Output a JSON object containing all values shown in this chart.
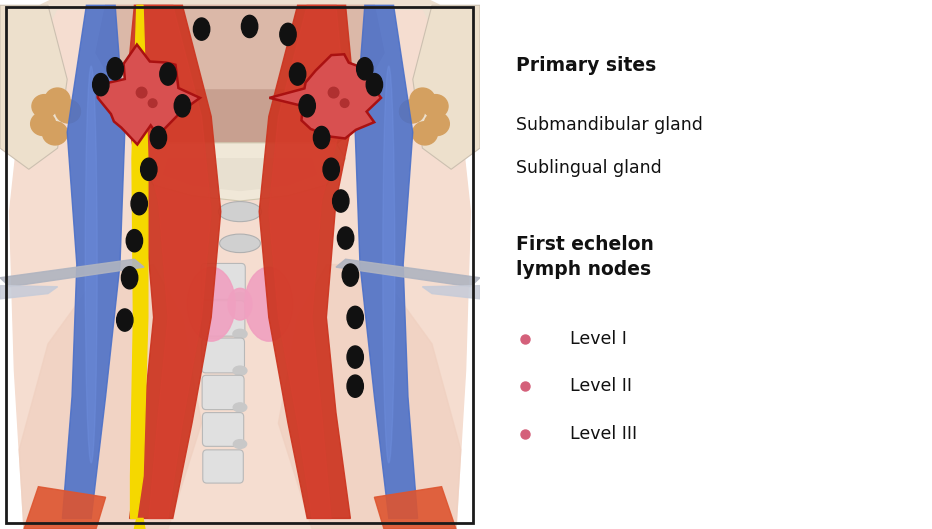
{
  "bg_color": "#ffffff",
  "border_color": "#1a1a1a",
  "primary_sites_title": "Primary sites",
  "primary_sites_items": [
    "Submandibular gland",
    "Sublingual gland"
  ],
  "first_echelon_title": "First echelon\nlymph nodes",
  "levels": [
    "Level I",
    "Level II",
    "Level III"
  ],
  "level_dot_color": "#d4607a",
  "title_fontsize": 13.5,
  "body_fontsize": 12.5,
  "level_fontsize": 12.5,
  "skin_light": "#f5ddd0",
  "skin_mid": "#e8c0a8",
  "skin_outer": "#f0d8c8",
  "muscle_red": "#cc3520",
  "muscle_red2": "#d84030",
  "vein_blue": "#4a6fc8",
  "nerve_yellow": "#f5d800",
  "node_black": "#111111",
  "tumor_fill": "#d85050",
  "tumor_outline": "#aa1111",
  "bone_gray": "#c8c8c8",
  "bone_white": "#e0e0e0",
  "lymph_pink": "#f0a0c0",
  "parotid_tan": "#d4a060",
  "retractor_silver": "#b0b4c0",
  "jaw_cream": "#f0e8d8",
  "trachea_gray": "#d0d0d0",
  "tissue_pink": "#f0c8b8",
  "lower_red_orange": "#dd5530"
}
